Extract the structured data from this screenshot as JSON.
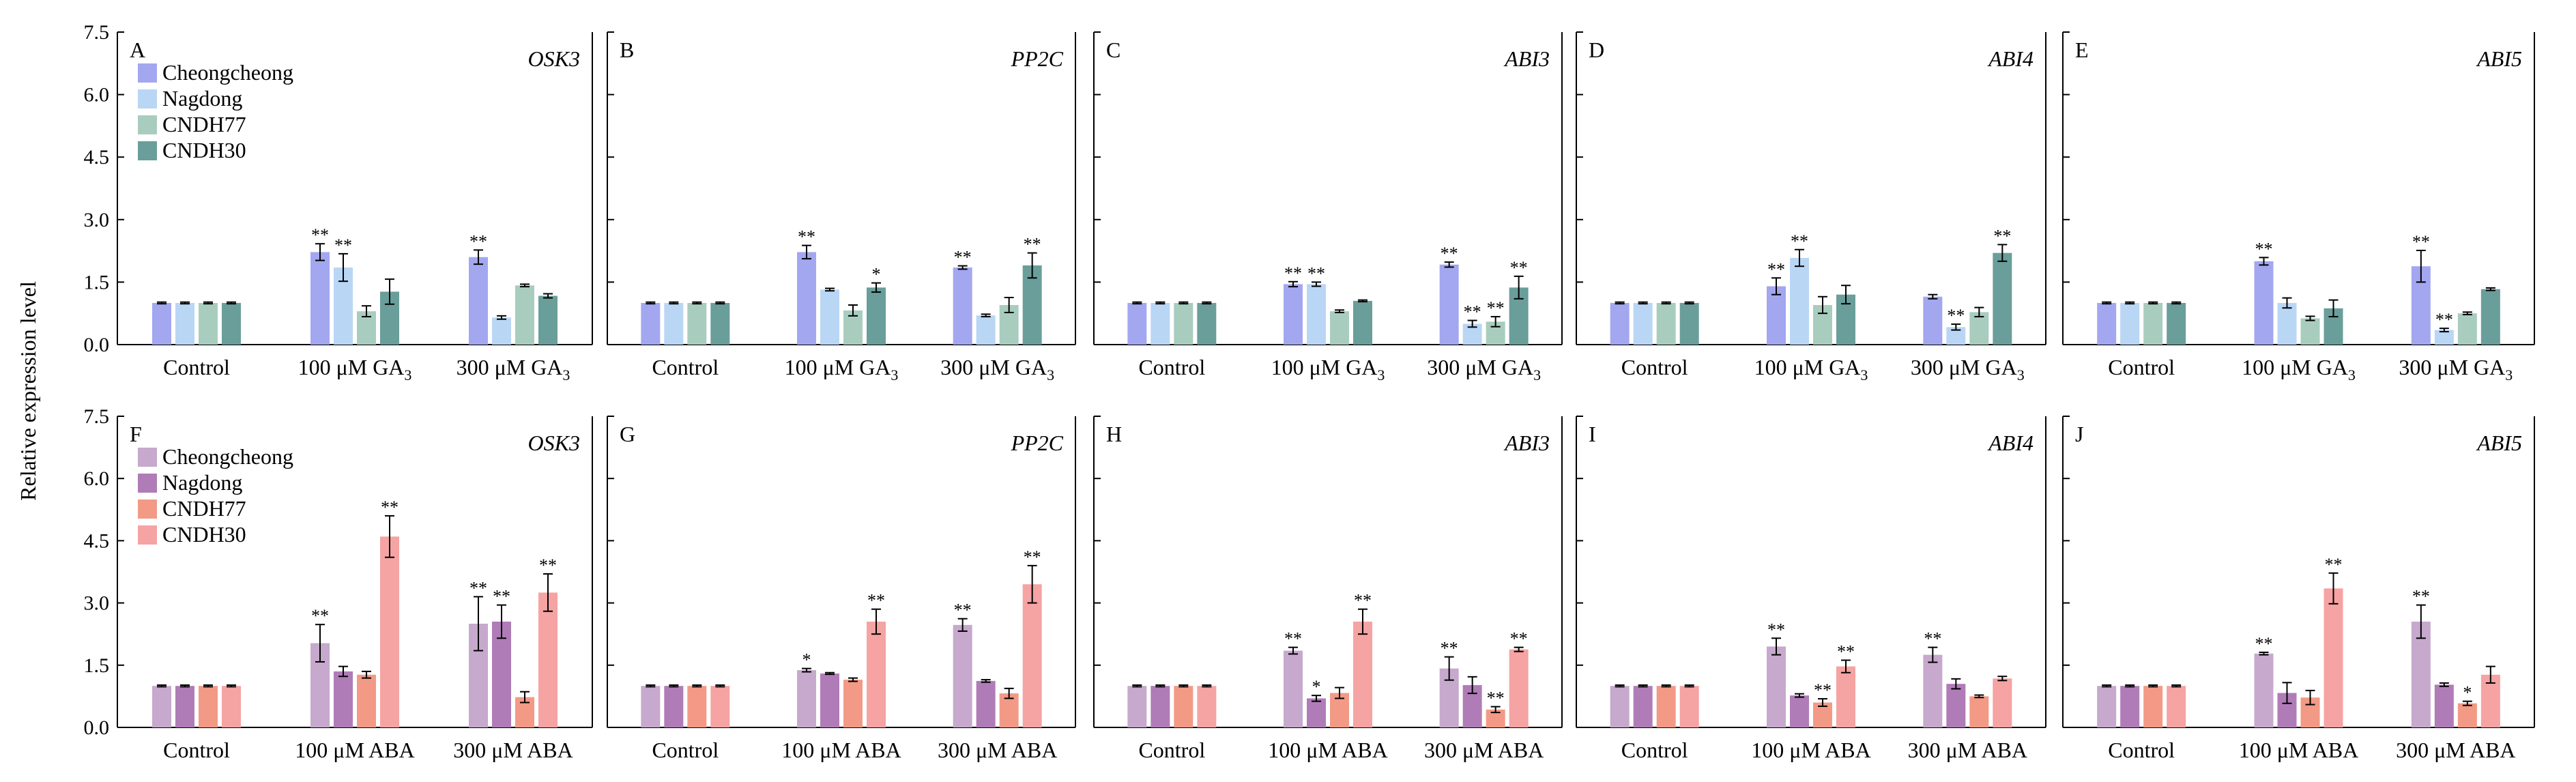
{
  "ylabel": "Relative expression level",
  "yticks": [
    "0.0",
    "1.5",
    "3.0",
    "4.5",
    "6.0",
    "7.5"
  ],
  "ylim": [
    0,
    7.5
  ],
  "colors": {
    "GA": [
      "#a3a7f0",
      "#b9d6f5",
      "#a8cdbf",
      "#6a9e9a"
    ],
    "ABA": [
      "#c6a9cc",
      "#b07cb7",
      "#f29a86",
      "#f5a3a3"
    ]
  },
  "legends": {
    "GA": [
      "Cheongcheong",
      "Nagdong",
      "CNDH77",
      "CNDH30"
    ],
    "ABA": [
      "Cheongcheong",
      "Nagdong",
      "CNDH77",
      "CNDH30"
    ]
  },
  "chart_data": [
    {
      "type": "bar",
      "panel": "A",
      "gene": "OSK3",
      "row": "GA",
      "categories": [
        "Control",
        "100 μM GA3",
        "300 μM GA3"
      ],
      "series": [
        {
          "name": "Cheongcheong",
          "values": [
            1.0,
            2.22,
            2.1
          ],
          "errors": [
            0.02,
            0.2,
            0.17
          ],
          "sig": [
            "",
            "**",
            "**"
          ]
        },
        {
          "name": "Nagdong",
          "values": [
            1.0,
            1.85,
            0.65
          ],
          "errors": [
            0.02,
            0.33,
            0.04
          ],
          "sig": [
            "",
            "**",
            ""
          ]
        },
        {
          "name": "CNDH77",
          "values": [
            1.0,
            0.8,
            1.42
          ],
          "errors": [
            0.02,
            0.13,
            0.03
          ],
          "sig": [
            "",
            "",
            ""
          ]
        },
        {
          "name": "CNDH30",
          "values": [
            1.0,
            1.27,
            1.17
          ],
          "errors": [
            0.02,
            0.3,
            0.05
          ],
          "sig": [
            "",
            "",
            ""
          ]
        }
      ]
    },
    {
      "type": "bar",
      "panel": "B",
      "gene": "PP2C",
      "row": "GA",
      "categories": [
        "Control",
        "100 μM GA3",
        "300 μM GA3"
      ],
      "series": [
        {
          "name": "Cheongcheong",
          "values": [
            1.0,
            2.22,
            1.85
          ],
          "errors": [
            0.02,
            0.16,
            0.04
          ],
          "sig": [
            "",
            "**",
            "**"
          ]
        },
        {
          "name": "Nagdong",
          "values": [
            1.0,
            1.32,
            0.7
          ],
          "errors": [
            0.02,
            0.03,
            0.03
          ],
          "sig": [
            "",
            "",
            ""
          ]
        },
        {
          "name": "CNDH77",
          "values": [
            1.0,
            0.82,
            0.95
          ],
          "errors": [
            0.02,
            0.13,
            0.18
          ],
          "sig": [
            "",
            "",
            ""
          ]
        },
        {
          "name": "CNDH30",
          "values": [
            1.0,
            1.37,
            1.9
          ],
          "errors": [
            0.02,
            0.11,
            0.3
          ],
          "sig": [
            "",
            "*",
            "**"
          ]
        }
      ]
    },
    {
      "type": "bar",
      "panel": "C",
      "gene": "ABI3",
      "row": "GA",
      "categories": [
        "Control",
        "100 μM GA3",
        "300 μM GA3"
      ],
      "series": [
        {
          "name": "Cheongcheong",
          "values": [
            1.0,
            1.45,
            1.92
          ],
          "errors": [
            0.02,
            0.06,
            0.06
          ],
          "sig": [
            "",
            "**",
            "**"
          ]
        },
        {
          "name": "Nagdong",
          "values": [
            1.0,
            1.45,
            0.5
          ],
          "errors": [
            0.02,
            0.05,
            0.08
          ],
          "sig": [
            "",
            "**",
            "**"
          ]
        },
        {
          "name": "CNDH77",
          "values": [
            1.0,
            0.8,
            0.55
          ],
          "errors": [
            0.02,
            0.03,
            0.12
          ],
          "sig": [
            "",
            "",
            "**"
          ]
        },
        {
          "name": "CNDH30",
          "values": [
            1.0,
            1.05,
            1.37
          ],
          "errors": [
            0.02,
            0.02,
            0.27
          ],
          "sig": [
            "",
            "",
            "**"
          ]
        }
      ]
    },
    {
      "type": "bar",
      "panel": "D",
      "gene": "ABI4",
      "row": "GA",
      "categories": [
        "Control",
        "100 μM GA3",
        "300 μM GA3"
      ],
      "series": [
        {
          "name": "Cheongcheong",
          "values": [
            1.0,
            1.4,
            1.15
          ],
          "errors": [
            0.02,
            0.2,
            0.05
          ],
          "sig": [
            "",
            "**",
            ""
          ]
        },
        {
          "name": "Nagdong",
          "values": [
            1.0,
            2.08,
            0.42
          ],
          "errors": [
            0.02,
            0.2,
            0.07
          ],
          "sig": [
            "",
            "**",
            "**"
          ]
        },
        {
          "name": "CNDH77",
          "values": [
            1.0,
            0.95,
            0.78
          ],
          "errors": [
            0.02,
            0.2,
            0.11
          ],
          "sig": [
            "",
            "",
            ""
          ]
        },
        {
          "name": "CNDH30",
          "values": [
            1.0,
            1.2,
            2.2
          ],
          "errors": [
            0.02,
            0.22,
            0.2
          ],
          "sig": [
            "",
            "",
            "**"
          ]
        }
      ]
    },
    {
      "type": "bar",
      "panel": "E",
      "gene": "ABI5",
      "row": "GA",
      "categories": [
        "Control",
        "100 μM GA3",
        "300 μM GA3"
      ],
      "series": [
        {
          "name": "Cheongcheong",
          "values": [
            1.0,
            2.0,
            1.88
          ],
          "errors": [
            0.02,
            0.09,
            0.38
          ],
          "sig": [
            "",
            "**",
            "**"
          ]
        },
        {
          "name": "Nagdong",
          "values": [
            1.0,
            1.0,
            0.35
          ],
          "errors": [
            0.02,
            0.12,
            0.04
          ],
          "sig": [
            "",
            "",
            "**"
          ]
        },
        {
          "name": "CNDH77",
          "values": [
            1.0,
            0.63,
            0.75
          ],
          "errors": [
            0.02,
            0.05,
            0.03
          ],
          "sig": [
            "",
            "",
            ""
          ]
        },
        {
          "name": "CNDH30",
          "values": [
            1.0,
            0.87,
            1.33
          ],
          "errors": [
            0.02,
            0.2,
            0.03
          ],
          "sig": [
            "",
            "",
            ""
          ]
        }
      ]
    },
    {
      "type": "bar",
      "panel": "F",
      "gene": "OSK3",
      "row": "ABA",
      "categories": [
        "Control",
        "100 μM ABA",
        "300 μM ABA"
      ],
      "series": [
        {
          "name": "Cheongcheong",
          "values": [
            1.0,
            2.03,
            2.5
          ],
          "errors": [
            0.02,
            0.45,
            0.65
          ],
          "sig": [
            "",
            "**",
            "**"
          ]
        },
        {
          "name": "Nagdong",
          "values": [
            1.0,
            1.35,
            2.55
          ],
          "errors": [
            0.02,
            0.12,
            0.4
          ],
          "sig": [
            "",
            "",
            "**"
          ]
        },
        {
          "name": "CNDH77",
          "values": [
            1.0,
            1.27,
            0.73
          ],
          "errors": [
            0.02,
            0.08,
            0.13
          ],
          "sig": [
            "",
            "",
            ""
          ]
        },
        {
          "name": "CNDH30",
          "values": [
            1.0,
            4.6,
            3.25
          ],
          "errors": [
            0.02,
            0.5,
            0.45
          ],
          "sig": [
            "",
            "**",
            "**"
          ]
        }
      ]
    },
    {
      "type": "bar",
      "panel": "G",
      "gene": "PP2C",
      "row": "ABA",
      "categories": [
        "Control",
        "100 μM ABA",
        "300 μM ABA"
      ],
      "series": [
        {
          "name": "Cheongcheong",
          "values": [
            1.0,
            1.38,
            2.47
          ],
          "errors": [
            0.02,
            0.04,
            0.15
          ],
          "sig": [
            "",
            "*",
            "**"
          ]
        },
        {
          "name": "Nagdong",
          "values": [
            1.0,
            1.3,
            1.12
          ],
          "errors": [
            0.02,
            0.02,
            0.03
          ],
          "sig": [
            "",
            "",
            ""
          ]
        },
        {
          "name": "CNDH77",
          "values": [
            1.0,
            1.15,
            0.82
          ],
          "errors": [
            0.02,
            0.04,
            0.12
          ],
          "sig": [
            "",
            "",
            ""
          ]
        },
        {
          "name": "CNDH30",
          "values": [
            1.0,
            2.55,
            3.45
          ],
          "errors": [
            0.02,
            0.3,
            0.45
          ],
          "sig": [
            "",
            "**",
            "**"
          ]
        }
      ]
    },
    {
      "type": "bar",
      "panel": "H",
      "gene": "ABI3",
      "row": "ABA",
      "categories": [
        "Control",
        "100 μM ABA",
        "300 μM ABA"
      ],
      "series": [
        {
          "name": "Cheongcheong",
          "values": [
            1.0,
            1.85,
            1.42
          ],
          "errors": [
            0.02,
            0.08,
            0.28
          ],
          "sig": [
            "",
            "**",
            "**"
          ]
        },
        {
          "name": "Nagdong",
          "values": [
            1.0,
            0.7,
            1.02
          ],
          "errors": [
            0.02,
            0.07,
            0.2
          ],
          "sig": [
            "",
            "*",
            ""
          ]
        },
        {
          "name": "CNDH77",
          "values": [
            1.0,
            0.83,
            0.43
          ],
          "errors": [
            0.02,
            0.13,
            0.07
          ],
          "sig": [
            "",
            "",
            "**"
          ]
        },
        {
          "name": "CNDH30",
          "values": [
            1.0,
            2.55,
            1.88
          ],
          "errors": [
            0.02,
            0.3,
            0.05
          ],
          "sig": [
            "",
            "**",
            "**"
          ]
        }
      ]
    },
    {
      "type": "bar",
      "panel": "I",
      "gene": "ABI4",
      "row": "ABA",
      "categories": [
        "Control",
        "100 μM ABA",
        "300 μM ABA"
      ],
      "series": [
        {
          "name": "Cheongcheong",
          "values": [
            1.0,
            1.95,
            1.75
          ],
          "errors": [
            0.02,
            0.2,
            0.18
          ],
          "sig": [
            "",
            "**",
            "**"
          ]
        },
        {
          "name": "Nagdong",
          "values": [
            1.0,
            0.77,
            1.05
          ],
          "errors": [
            0.02,
            0.04,
            0.12
          ],
          "sig": [
            "",
            "",
            ""
          ]
        },
        {
          "name": "CNDH77",
          "values": [
            1.0,
            0.6,
            0.75
          ],
          "errors": [
            0.02,
            0.09,
            0.03
          ],
          "sig": [
            "",
            "**",
            ""
          ]
        },
        {
          "name": "CNDH30",
          "values": [
            1.0,
            1.47,
            1.18
          ],
          "errors": [
            0.02,
            0.15,
            0.05
          ],
          "sig": [
            "",
            "**",
            ""
          ]
        }
      ]
    },
    {
      "type": "bar",
      "panel": "J",
      "gene": "ABI5",
      "row": "ABA",
      "categories": [
        "Control",
        "100 μM ABA",
        "300 μM ABA"
      ],
      "series": [
        {
          "name": "Cheongcheong",
          "values": [
            1.0,
            1.78,
            2.55
          ],
          "errors": [
            0.02,
            0.03,
            0.4
          ],
          "sig": [
            "",
            "**",
            "**"
          ]
        },
        {
          "name": "Nagdong",
          "values": [
            1.0,
            0.83,
            1.03
          ],
          "errors": [
            0.02,
            0.25,
            0.04
          ],
          "sig": [
            "",
            "",
            ""
          ]
        },
        {
          "name": "CNDH77",
          "values": [
            1.0,
            0.72,
            0.58
          ],
          "errors": [
            0.02,
            0.17,
            0.05
          ],
          "sig": [
            "",
            "",
            "*"
          ]
        },
        {
          "name": "CNDH30",
          "values": [
            1.0,
            3.35,
            1.27
          ],
          "errors": [
            0.02,
            0.37,
            0.2
          ],
          "sig": [
            "",
            "**",
            ""
          ]
        }
      ]
    }
  ]
}
